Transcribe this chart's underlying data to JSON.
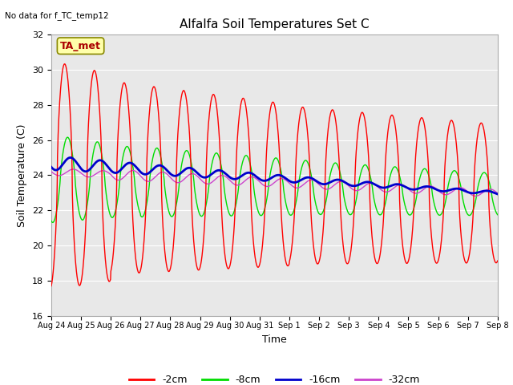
{
  "title": "Alfalfa Soil Temperatures Set C",
  "xlabel": "Time",
  "ylabel": "Soil Temperature (C)",
  "no_data_text": "No data for f_TC_temp12",
  "ta_met_label": "TA_met",
  "ylim": [
    16,
    32
  ],
  "yticks": [
    16,
    18,
    20,
    22,
    24,
    26,
    28,
    30,
    32
  ],
  "x_tick_labels": [
    "Aug 24",
    "Aug 25",
    "Aug 26",
    "Aug 27",
    "Aug 28",
    "Aug 29",
    "Aug 30",
    "Aug 31",
    "Sep 1",
    "Sep 2",
    "Sep 3",
    "Sep 4",
    "Sep 5",
    "Sep 6",
    "Sep 7",
    "Sep 8"
  ],
  "legend_labels": [
    "-2cm",
    "-8cm",
    "-16cm",
    "-32cm"
  ],
  "legend_colors": [
    "#ff0000",
    "#00dd00",
    "#0000cc",
    "#cc44cc"
  ],
  "bg_color": "#e8e8e8",
  "fig_bg": "#ffffff",
  "ta_met_box_color": "#ffffaa",
  "ta_met_text_color": "#aa0000",
  "ta_met_box_edge": "#888800"
}
